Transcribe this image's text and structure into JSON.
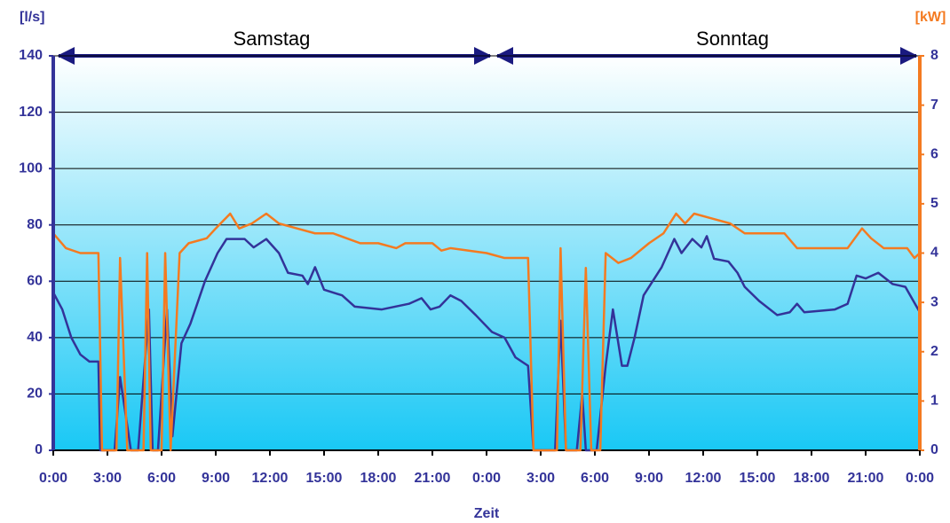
{
  "chart_data": {
    "type": "line",
    "y_label": "[l/s]",
    "y2_label": "[kW]",
    "x_label": "Zeit",
    "annotations": [
      "Samstag",
      "Sonntag"
    ],
    "xlim": [
      0,
      48
    ],
    "xticks": [
      {
        "value": 0,
        "label": "0:00"
      },
      {
        "value": 3,
        "label": "3:00"
      },
      {
        "value": 6,
        "label": "6:00"
      },
      {
        "value": 9,
        "label": "9:00"
      },
      {
        "value": 12,
        "label": "12:00"
      },
      {
        "value": 15,
        "label": "15:00"
      },
      {
        "value": 18,
        "label": "18:00"
      },
      {
        "value": 21,
        "label": "21:00"
      },
      {
        "value": 24,
        "label": "0:00"
      },
      {
        "value": 27,
        "label": "3:00"
      },
      {
        "value": 30,
        "label": "6:00"
      },
      {
        "value": 33,
        "label": "9:00"
      },
      {
        "value": 36,
        "label": "12:00"
      },
      {
        "value": 39,
        "label": "15:00"
      },
      {
        "value": 42,
        "label": "18:00"
      },
      {
        "value": 45,
        "label": "21:00"
      },
      {
        "value": 48,
        "label": "0:00"
      }
    ],
    "ylim": [
      0,
      140
    ],
    "yticks": [
      0,
      20,
      40,
      60,
      80,
      100,
      120,
      140
    ],
    "y2lim": [
      0,
      8
    ],
    "y2ticks": [
      0,
      1,
      2,
      3,
      4,
      5,
      6,
      7,
      8
    ],
    "grid": true,
    "series": [
      {
        "color": "#333399",
        "x": [
          0,
          0.5,
          1,
          1.5,
          2,
          2.5,
          2.6,
          3.4,
          3.7,
          4.3,
          4.7,
          5.3,
          5.5,
          5.8,
          6.3,
          6.6,
          7.1,
          7.6,
          8.4,
          9.1,
          9.6,
          10.6,
          11.1,
          11.8,
          12.5,
          13,
          13.8,
          14.1,
          14.5,
          15,
          16,
          16.7,
          18.2,
          19.7,
          20.4,
          20.9,
          21.4,
          22,
          22.6,
          23.4,
          24.3,
          25,
          25.6,
          26.3,
          26.6,
          27.8,
          28.1,
          28.4,
          29,
          29.3,
          29.5,
          30.1,
          30.6,
          31,
          31.5,
          31.8,
          32.2,
          32.7,
          33.7,
          34.4,
          34.8,
          35.4,
          35.9,
          36.2,
          36.6,
          37.4,
          37.9,
          38.3,
          39.1,
          40.1,
          40.8,
          41.2,
          41.6,
          43.3,
          44,
          44.5,
          45,
          45.7,
          46.5,
          47.2,
          48
        ],
        "values": [
          56,
          50,
          40,
          34,
          31.5,
          31.5,
          0,
          0,
          26,
          0,
          0,
          50,
          0,
          0,
          50,
          5,
          38,
          45,
          60,
          70,
          75,
          75,
          72,
          75,
          70,
          63,
          62,
          59,
          65,
          57,
          55,
          51,
          50,
          52,
          54,
          50,
          51,
          55,
          53,
          48,
          42,
          40,
          33,
          30,
          0,
          0,
          46,
          0,
          0,
          20,
          0,
          0,
          30,
          50,
          30,
          30,
          40,
          55,
          65,
          75,
          70,
          75,
          72,
          76,
          68,
          67,
          63,
          58,
          53,
          48,
          49,
          52,
          49,
          50,
          52,
          62,
          61,
          63,
          59,
          58,
          49
        ]
      },
      {
        "color": "#f47a20",
        "axis": "y2",
        "x": [
          0,
          0.7,
          1.5,
          2.5,
          2.7,
          3.5,
          3.7,
          4.1,
          5.0,
          5.2,
          5.4,
          6.0,
          6.2,
          6.5,
          7.0,
          7.5,
          8.5,
          9.0,
          9.8,
          10.3,
          11,
          11.8,
          12.5,
          13.5,
          14.5,
          15.5,
          17,
          18,
          19,
          19.5,
          21,
          21.5,
          22,
          24,
          25,
          26.3,
          26.6,
          27.9,
          28.1,
          28.4,
          29.2,
          29.5,
          29.8,
          30.3,
          30.6,
          31.3,
          32,
          33,
          33.8,
          34.5,
          35,
          35.5,
          36.5,
          37.5,
          38.3,
          40.5,
          41.2,
          42,
          44,
          44.8,
          45.3,
          46,
          47.3,
          47.7,
          48
        ],
        "values": [
          4.4,
          4.1,
          4.0,
          4.0,
          0,
          0,
          3.9,
          0,
          0,
          4.0,
          0,
          0,
          4.0,
          0,
          4.0,
          4.2,
          4.3,
          4.5,
          4.8,
          4.5,
          4.6,
          4.8,
          4.6,
          4.5,
          4.4,
          4.4,
          4.2,
          4.2,
          4.1,
          4.2,
          4.2,
          4.05,
          4.1,
          4.0,
          3.9,
          3.9,
          0,
          0,
          4.1,
          0,
          0,
          3.7,
          0,
          0,
          4.0,
          3.8,
          3.9,
          4.2,
          4.4,
          4.8,
          4.6,
          4.8,
          4.7,
          4.6,
          4.4,
          4.4,
          4.1,
          4.1,
          4.1,
          4.5,
          4.3,
          4.1,
          4.1,
          3.9,
          4.0
        ]
      }
    ]
  }
}
